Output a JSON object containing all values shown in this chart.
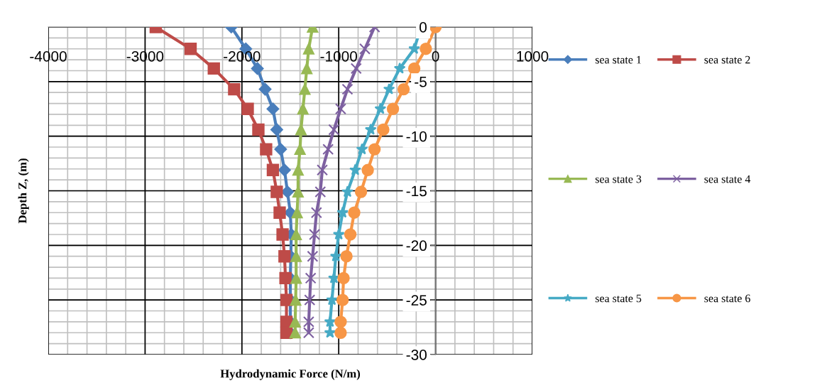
{
  "chart_data": {
    "type": "line",
    "xlabel": "Hydrodynamic Force (N/m)",
    "ylabel": "Depth Z, (m)",
    "xlim": [
      -4000,
      1000
    ],
    "xticks": [
      -4000,
      -3000,
      -2000,
      -1000,
      0,
      1000
    ],
    "ylim": [
      -30,
      0
    ],
    "yticks": [
      -30,
      -25,
      -20,
      -15,
      -10,
      -5,
      0
    ],
    "grid": true,
    "legend": "right",
    "line_style": "solid",
    "series": [
      {
        "name": "sea state 1",
        "color": "#4a7ebb",
        "marker": "diamond",
        "x": [
          -2110,
          -1960,
          -1840,
          -1760,
          -1680,
          -1640,
          -1600,
          -1560,
          -1530,
          -1500,
          -1490,
          -1495,
          -1500,
          -1500,
          -1500,
          -1500
        ],
        "values": [
          0,
          -2,
          -3.8,
          -5.7,
          -7.5,
          -9.4,
          -11.2,
          -13.1,
          -15.1,
          -17,
          -19,
          -21,
          -23,
          -25,
          -27,
          -28
        ]
      },
      {
        "name": "sea state 2",
        "color": "#be4b48",
        "marker": "square",
        "x": [
          -2890,
          -2530,
          -2290,
          -2080,
          -1940,
          -1830,
          -1750,
          -1680,
          -1640,
          -1610,
          -1580,
          -1560,
          -1550,
          -1540,
          -1540,
          -1540
        ],
        "values": [
          0,
          -2,
          -3.8,
          -5.7,
          -7.5,
          -9.4,
          -11.2,
          -13.1,
          -15.1,
          -17,
          -19,
          -21,
          -23,
          -25,
          -27,
          -28
        ]
      },
      {
        "name": "sea state 3",
        "color": "#98b954",
        "marker": "triangle",
        "x": [
          -1270,
          -1310,
          -1330,
          -1350,
          -1370,
          -1390,
          -1400,
          -1420,
          -1420,
          -1430,
          -1440,
          -1440,
          -1440,
          -1445,
          -1450,
          -1450
        ],
        "values": [
          0,
          -2,
          -3.8,
          -5.7,
          -7.5,
          -9.4,
          -11.2,
          -13.1,
          -15.1,
          -17,
          -19,
          -21,
          -23,
          -25,
          -27,
          -28
        ]
      },
      {
        "name": "sea state 4",
        "color": "#7d60a0",
        "marker": "cross",
        "x": [
          -630,
          -730,
          -820,
          -910,
          -980,
          -1050,
          -1110,
          -1170,
          -1190,
          -1230,
          -1250,
          -1270,
          -1290,
          -1300,
          -1310,
          -1310
        ],
        "values": [
          0,
          -2,
          -3.8,
          -5.7,
          -7.5,
          -9.4,
          -11.2,
          -13.1,
          -15.1,
          -17,
          -19,
          -21,
          -23,
          -25,
          -27,
          -28
        ]
      },
      {
        "name": "sea state 5",
        "color": "#46aac5",
        "marker": "star",
        "x": [
          -150,
          -220,
          -370,
          -480,
          -570,
          -670,
          -760,
          -830,
          -910,
          -960,
          -1000,
          -1030,
          -1050,
          -1070,
          -1090,
          -1090
        ],
        "values": [
          0,
          -2,
          -3.8,
          -5.7,
          -7.5,
          -9.4,
          -11.2,
          -13.1,
          -15.1,
          -17,
          -19,
          -21,
          -23,
          -25,
          -27,
          -28
        ]
      },
      {
        "name": "sea state 6",
        "color": "#f79646",
        "marker": "circle",
        "x": [
          0,
          -100,
          -220,
          -330,
          -440,
          -540,
          -630,
          -700,
          -770,
          -840,
          -880,
          -920,
          -950,
          -960,
          -980,
          -980
        ],
        "values": [
          0,
          -2,
          -3.8,
          -5.7,
          -7.5,
          -9.4,
          -11.2,
          -13.1,
          -15.1,
          -17,
          -19,
          -21,
          -23,
          -25,
          -27,
          -28
        ]
      }
    ]
  }
}
